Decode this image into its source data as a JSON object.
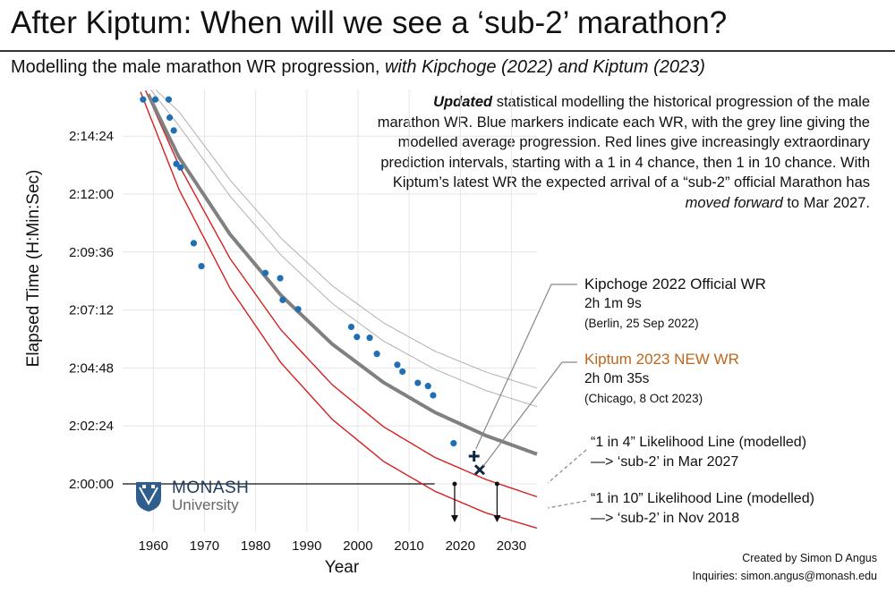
{
  "title": "After Kiptum: When will we see a ‘sub-2’ marathon?",
  "subtitle": {
    "main": "Modelling the male marathon WR progression, ",
    "italic": "with Kipchoge (2022) and Kiptum (2023)"
  },
  "description": {
    "bold": "Updated",
    "part1": " statistical modelling the historical progression of the male marathon WR. Blue markers indicate each WR, with the grey line giving the modelled average progression. Red lines give increasingly extraordinary prediction intervals, starting with a 1 in 4 chance, then 1 in 10 chance. With Kiptum’s latest WR the expected arrival of a “sub-2” official Marathon has ",
    "italic": "moved forward",
    "part2": " to Mar 2027."
  },
  "annotations": {
    "kipchoge": {
      "title": "Kipchoge 2022 Official WR",
      "time": "2h 1m 9s",
      "place": "(Berlin, 25 Sep 2022)"
    },
    "kiptum": {
      "title": "Kiptum 2023 NEW WR",
      "time": "2h 0m 35s",
      "place": "(Chicago, 8 Oct 2023)",
      "color": "#c0661a"
    },
    "one_in_4": {
      "line1": "“1 in 4” Likelihood Line (modelled)",
      "line2": "—> ‘sub-2’ in Mar 2027"
    },
    "one_in_10": {
      "line1": "“1 in 10” Likelihood Line (modelled)",
      "line2": "—> ‘sub-2’ in Nov 2018"
    }
  },
  "credit": {
    "line1": "Created by Simon D Angus",
    "line2": "Inquiries: simon.angus@monash.edu"
  },
  "logo": {
    "word1": "MONASH",
    "word2": "University"
  },
  "colors": {
    "markers": "#1f6fb5",
    "model": "#808080",
    "intervals": "#d42020",
    "grid": "#e6e6e6",
    "kiptum": "#c0661a"
  },
  "chart_data": {
    "type": "scatter",
    "xlabel": "Year",
    "ylabel": "Elapsed Time (H:Min:Sec)",
    "xlim": [
      1954,
      2035
    ],
    "ylim_seconds": [
      7080,
      8180
    ],
    "x_ticks": [
      1960,
      1970,
      1980,
      1990,
      2000,
      2010,
      2020,
      2030
    ],
    "y_ticks": [
      {
        "label": "2:00:00",
        "seconds": 7200
      },
      {
        "label": "2:02:24",
        "seconds": 7344
      },
      {
        "label": "2:04:48",
        "seconds": 7488
      },
      {
        "label": "2:07:12",
        "seconds": 7632
      },
      {
        "label": "2:09:36",
        "seconds": 7776
      },
      {
        "label": "2:12:00",
        "seconds": 7920
      },
      {
        "label": "2:14:24",
        "seconds": 8064
      }
    ],
    "world_records": [
      {
        "year": 1958.0,
        "seconds": 8155
      },
      {
        "year": 1960.4,
        "seconds": 8155
      },
      {
        "year": 1963.0,
        "seconds": 8155
      },
      {
        "year": 1963.2,
        "seconds": 8110
      },
      {
        "year": 1964.0,
        "seconds": 8078
      },
      {
        "year": 1964.5,
        "seconds": 7995
      },
      {
        "year": 1965.3,
        "seconds": 7986
      },
      {
        "year": 1967.9,
        "seconds": 7798
      },
      {
        "year": 1969.4,
        "seconds": 7741
      },
      {
        "year": 1981.9,
        "seconds": 7724
      },
      {
        "year": 1984.8,
        "seconds": 7711
      },
      {
        "year": 1985.3,
        "seconds": 7657
      },
      {
        "year": 1988.3,
        "seconds": 7634
      },
      {
        "year": 1998.7,
        "seconds": 7590
      },
      {
        "year": 1999.8,
        "seconds": 7565
      },
      {
        "year": 2002.3,
        "seconds": 7563
      },
      {
        "year": 2003.7,
        "seconds": 7523
      },
      {
        "year": 2007.7,
        "seconds": 7496
      },
      {
        "year": 2008.7,
        "seconds": 7479
      },
      {
        "year": 2011.7,
        "seconds": 7451
      },
      {
        "year": 2013.7,
        "seconds": 7443
      },
      {
        "year": 2014.7,
        "seconds": 7420
      },
      {
        "year": 2018.7,
        "seconds": 7301
      }
    ],
    "highlight_records": [
      {
        "name": "Kipchoge 2022",
        "year": 2022.7,
        "seconds": 7269
      },
      {
        "name": "Kiptum 2023",
        "year": 2023.8,
        "seconds": 7235
      }
    ],
    "model_line": {
      "x": [
        1957,
        1965,
        1975,
        1985,
        1995,
        2005,
        2015,
        2025,
        2035
      ],
      "seconds": [
        8220,
        8012,
        7820,
        7668,
        7547,
        7452,
        7378,
        7320,
        7274
      ]
    },
    "upper_bands": [
      {
        "x": [
          1957,
          1965,
          1975,
          1985,
          1995,
          2005,
          2015,
          2025,
          2035
        ],
        "seconds": [
          8220,
          8090,
          7915,
          7768,
          7648,
          7555,
          7485,
          7432,
          7392
        ]
      },
      {
        "x": [
          1957,
          1965,
          1975,
          1985,
          1995,
          2005,
          2015,
          2025,
          2035
        ],
        "seconds": [
          8220,
          8125,
          7955,
          7810,
          7692,
          7600,
          7530,
          7478,
          7438
        ]
      }
    ],
    "interval_1_in_4": {
      "x": [
        1957,
        1965,
        1975,
        1985,
        1995,
        2005,
        2015,
        2025,
        2035
      ],
      "seconds": [
        8220,
        7992,
        7760,
        7582,
        7446,
        7342,
        7266,
        7211,
        7168
      ]
    },
    "interval_1_in_10": {
      "x": [
        1957,
        1965,
        1975,
        1985,
        1995,
        2005,
        2015,
        2025,
        2035
      ],
      "seconds": [
        8190,
        7932,
        7686,
        7500,
        7360,
        7256,
        7182,
        7128,
        7090
      ]
    },
    "sub2_arrivals": [
      {
        "label": "Nov 2018",
        "year": 2018.9
      },
      {
        "label": "Mar 2027",
        "year": 2027.2
      }
    ],
    "sub2_seconds": 7200
  }
}
